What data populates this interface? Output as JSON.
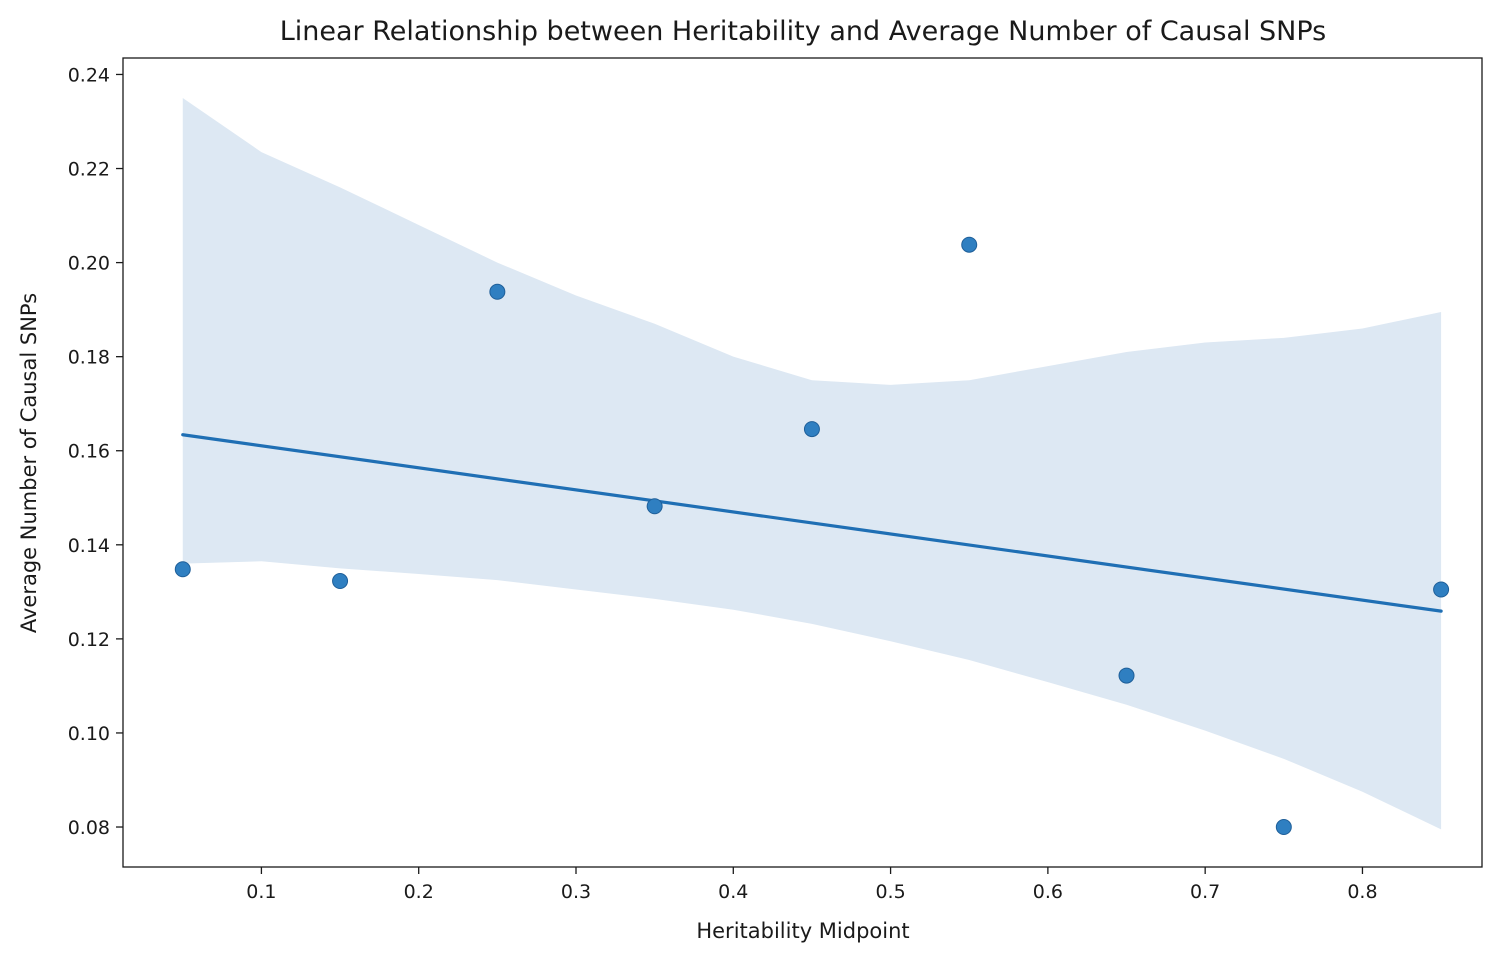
{
  "chart_data": {
    "type": "scatter",
    "title": "Linear Relationship between Heritability and Average Number of Causal SNPs",
    "xlabel": "Heritability Midpoint",
    "ylabel": "Average Number of Causal SNPs",
    "xlim": [
      0.012,
      0.876
    ],
    "ylim": [
      0.0715,
      0.2435
    ],
    "xticks": [
      0.1,
      0.2,
      0.3,
      0.4,
      0.5,
      0.6,
      0.7,
      0.8
    ],
    "xtick_labels": [
      "0.1",
      "0.2",
      "0.3",
      "0.4",
      "0.5",
      "0.6",
      "0.7",
      "0.8"
    ],
    "yticks": [
      0.08,
      0.1,
      0.12,
      0.14,
      0.16,
      0.18,
      0.2,
      0.22,
      0.24
    ],
    "ytick_labels": [
      "0.08",
      "0.10",
      "0.12",
      "0.14",
      "0.16",
      "0.18",
      "0.20",
      "0.22",
      "0.24"
    ],
    "grid": false,
    "points": {
      "x": [
        0.05,
        0.15,
        0.25,
        0.35,
        0.45,
        0.55,
        0.65,
        0.75,
        0.85
      ],
      "y": [
        0.1348,
        0.1323,
        0.1938,
        0.1482,
        0.1646,
        0.2038,
        0.1122,
        0.08,
        0.1305
      ]
    },
    "regression_line": {
      "x": [
        0.05,
        0.85
      ],
      "y": [
        0.1634,
        0.1259
      ]
    },
    "confidence_band": {
      "x": [
        0.05,
        0.1,
        0.15,
        0.2,
        0.25,
        0.3,
        0.35,
        0.4,
        0.45,
        0.5,
        0.55,
        0.6,
        0.65,
        0.7,
        0.75,
        0.8,
        0.85
      ],
      "upper": [
        0.235,
        0.2235,
        0.216,
        0.208,
        0.2,
        0.193,
        0.187,
        0.18,
        0.175,
        0.174,
        0.175,
        0.178,
        0.181,
        0.183,
        0.184,
        0.186,
        0.1895
      ],
      "lower": [
        0.136,
        0.1365,
        0.135,
        0.1338,
        0.1325,
        0.1305,
        0.1285,
        0.1262,
        0.1232,
        0.1195,
        0.1155,
        0.1108,
        0.106,
        0.1005,
        0.0945,
        0.0875,
        0.0795
      ]
    },
    "colors": {
      "marker": "#2f7fc1",
      "marker_edge": "#1f5f99",
      "line": "#1f6fb4",
      "band": "#dde8f3"
    }
  }
}
